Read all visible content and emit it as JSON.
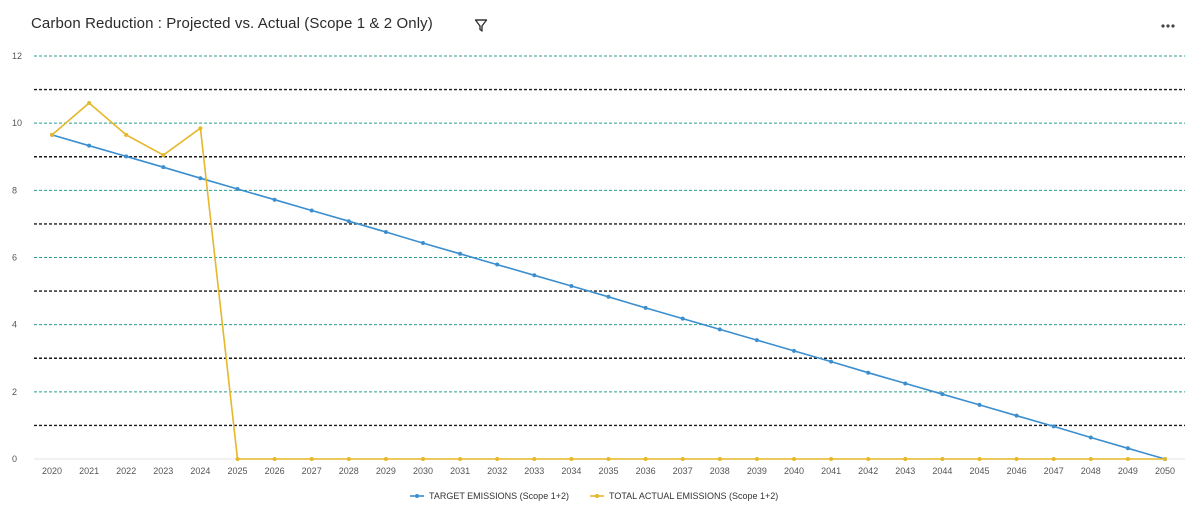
{
  "header": {
    "title": "Carbon Reduction : Projected vs. Actual (Scope 1 & 2 Only)",
    "filter_icon": "filter-icon",
    "more_icon": "more-options-icon"
  },
  "chart_data": {
    "type": "line",
    "title": "Carbon Reduction : Projected vs. Actual (Scope 1 & 2 Only)",
    "xlabel": "",
    "ylabel": "",
    "ylim": [
      0,
      12
    ],
    "yticks": [
      0,
      2,
      4,
      6,
      8,
      10,
      12
    ],
    "grid": true,
    "legend_position": "bottom-center",
    "x": [
      "2020",
      "2021",
      "2022",
      "2023",
      "2024",
      "2025",
      "2026",
      "2027",
      "2028",
      "2029",
      "2030",
      "2031",
      "2032",
      "2033",
      "2034",
      "2035",
      "2036",
      "2037",
      "2038",
      "2039",
      "2040",
      "2041",
      "2042",
      "2043",
      "2044",
      "2045",
      "2046",
      "2047",
      "2048",
      "2049",
      "2050"
    ],
    "series": [
      {
        "name": "TARGET EMISSIONS (Scope 1+2)",
        "color": "#3b8fcf",
        "values": [
          9.65,
          9.33,
          9.01,
          8.69,
          8.36,
          8.04,
          7.72,
          7.4,
          7.08,
          6.76,
          6.43,
          6.11,
          5.79,
          5.47,
          5.15,
          4.83,
          4.5,
          4.18,
          3.86,
          3.54,
          3.22,
          2.9,
          2.57,
          2.25,
          1.93,
          1.61,
          1.29,
          0.97,
          0.64,
          0.32,
          0.0
        ]
      },
      {
        "name": "TOTAL ACTUAL EMISSIONS (Scope 1+2)",
        "color": "#e5b72a",
        "values": [
          9.65,
          10.6,
          9.65,
          9.05,
          9.85,
          0,
          0,
          0,
          0,
          0,
          0,
          0,
          0,
          0,
          0,
          0,
          0,
          0,
          0,
          0,
          0,
          0,
          0,
          0,
          0,
          0,
          0,
          0,
          0,
          0,
          0
        ]
      }
    ],
    "reference_lines": {
      "values": [
        1,
        3,
        5,
        7,
        9,
        11
      ],
      "color": "#1a1a1a",
      "style": "dashed"
    },
    "gridline_color": "#2a9d8f"
  }
}
